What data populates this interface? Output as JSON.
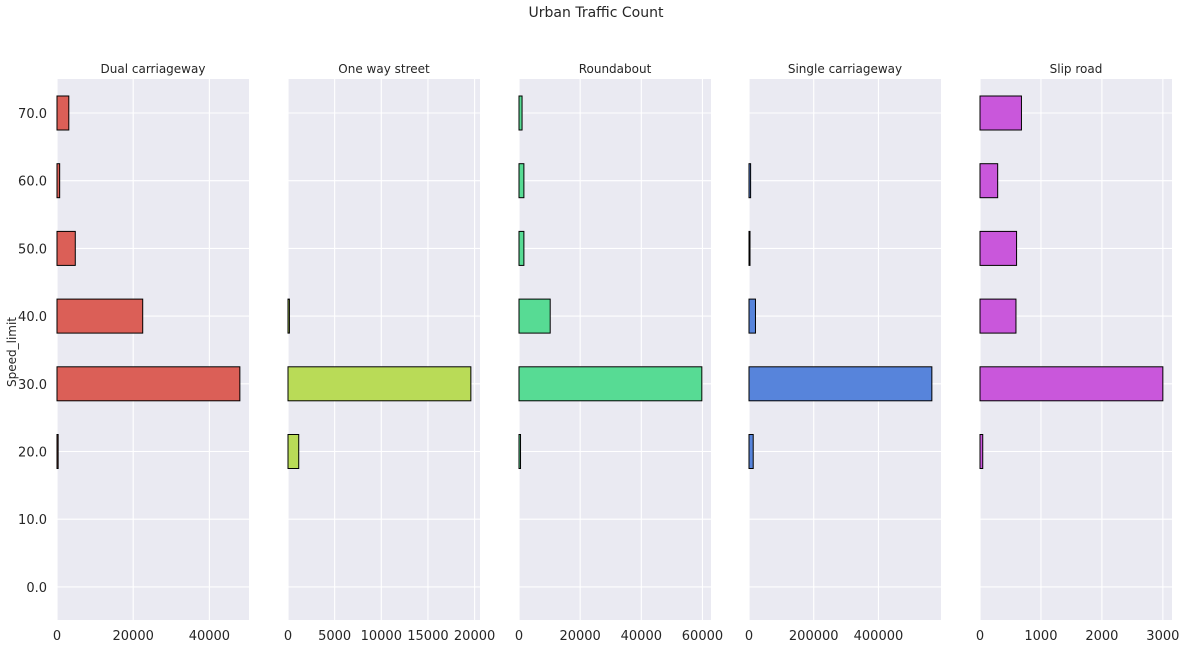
{
  "figure_title": "Urban Traffic Count",
  "colors": {
    "background": "#eaeaf2",
    "grid": "#ffffff",
    "bar_edge": "#000000",
    "text": "#262626"
  },
  "chart_data": [
    {
      "type": "bar",
      "orientation": "horizontal",
      "title": "Dual carriageway",
      "ylabel": "Speed_limit",
      "xlabel": "",
      "categories": [
        "0.0",
        "10.0",
        "20.0",
        "30.0",
        "40.0",
        "50.0",
        "60.0",
        "70.0"
      ],
      "values": [
        0,
        0,
        300,
        48000,
        22500,
        4800,
        700,
        3100
      ],
      "xticks": [
        0,
        20000,
        40000
      ],
      "xtick_labels": [
        "0",
        "20000",
        "40000"
      ],
      "xlim": [
        0,
        50400
      ],
      "color": "#db5f57",
      "grid": true
    },
    {
      "type": "bar",
      "orientation": "horizontal",
      "title": "One way street",
      "xlabel": "",
      "categories": [
        "0.0",
        "10.0",
        "20.0",
        "30.0",
        "40.0",
        "50.0",
        "60.0",
        "70.0"
      ],
      "values": [
        0,
        0,
        1150,
        19600,
        150,
        0,
        0,
        0
      ],
      "xticks": [
        0,
        5000,
        10000,
        15000,
        20000
      ],
      "xtick_labels": [
        "0",
        "5000",
        "10000",
        "15000",
        "20000"
      ],
      "xlim": [
        0,
        20580
      ],
      "color": "#b9db57",
      "grid": true
    },
    {
      "type": "bar",
      "orientation": "horizontal",
      "title": "Roundabout",
      "xlabel": "",
      "categories": [
        "0.0",
        "10.0",
        "20.0",
        "30.0",
        "40.0",
        "50.0",
        "60.0",
        "70.0"
      ],
      "values": [
        0,
        0,
        500,
        59800,
        10200,
        1600,
        1600,
        1000
      ],
      "xticks": [
        0,
        20000,
        40000,
        60000
      ],
      "xtick_labels": [
        "0",
        "20000",
        "40000",
        "60000"
      ],
      "xlim": [
        0,
        62790
      ],
      "color": "#57db94",
      "grid": true
    },
    {
      "type": "bar",
      "orientation": "horizontal",
      "title": "Single carriageway",
      "xlabel": "",
      "categories": [
        "0.0",
        "10.0",
        "20.0",
        "30.0",
        "40.0",
        "50.0",
        "60.0",
        "70.0"
      ],
      "values": [
        0,
        0,
        13000,
        565000,
        20000,
        2000,
        5000,
        0
      ],
      "xticks": [
        0,
        200000,
        400000
      ],
      "xtick_labels": [
        "0",
        "200000",
        "400000"
      ],
      "xlim": [
        0,
        593250
      ],
      "color": "#5784db",
      "grid": true
    },
    {
      "type": "bar",
      "orientation": "horizontal",
      "title": "Slip road",
      "xlabel": "",
      "categories": [
        "0.0",
        "10.0",
        "20.0",
        "30.0",
        "40.0",
        "50.0",
        "60.0",
        "70.0"
      ],
      "values": [
        0,
        0,
        45,
        3000,
        590,
        600,
        290,
        680
      ],
      "xticks": [
        0,
        1000,
        2000,
        3000
      ],
      "xtick_labels": [
        "0",
        "1000",
        "2000",
        "3000"
      ],
      "xlim": [
        0,
        3150
      ],
      "color": "#c957db",
      "grid": true
    }
  ]
}
